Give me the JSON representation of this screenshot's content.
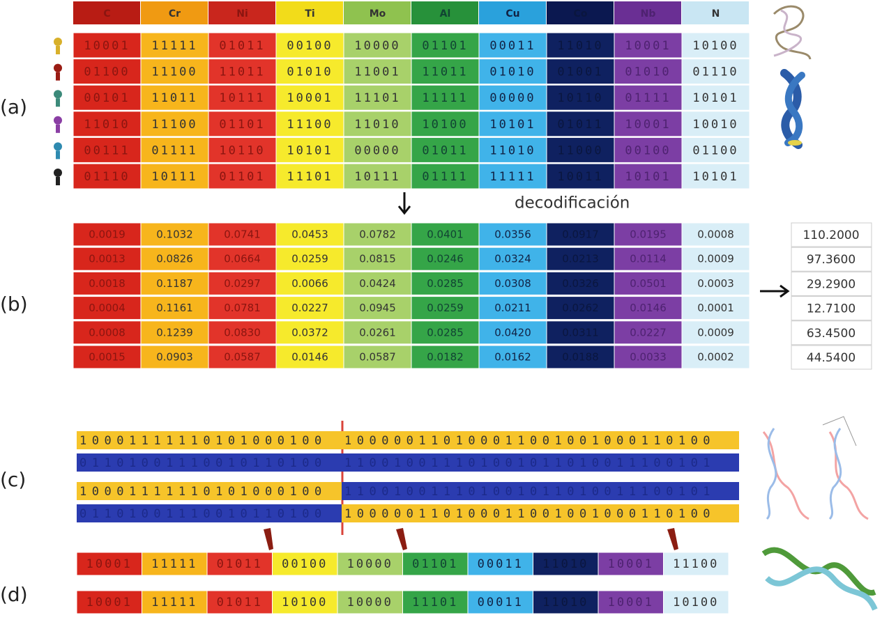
{
  "labels": {
    "a": "(a)",
    "b": "(b)",
    "c": "(c)",
    "d": "(d)"
  },
  "elements": [
    "C",
    "Cr",
    "Ni",
    "Ti",
    "Mo",
    "Al",
    "Cu",
    "Co",
    "Nb",
    "N"
  ],
  "population": [
    [
      "10001",
      "11111",
      "01011",
      "00100",
      "10000",
      "01101",
      "00011",
      "11010",
      "10001",
      "10100"
    ],
    [
      "01100",
      "11100",
      "11011",
      "01010",
      "11001",
      "11011",
      "01010",
      "01001",
      "01010",
      "01110"
    ],
    [
      "00101",
      "11011",
      "10111",
      "10001",
      "11101",
      "11111",
      "00000",
      "10110",
      "01111",
      "10101"
    ],
    [
      "11010",
      "11100",
      "01101",
      "11100",
      "11010",
      "10100",
      "10101",
      "01011",
      "10001",
      "10010"
    ],
    [
      "00111",
      "01111",
      "10110",
      "10101",
      "00000",
      "01011",
      "11010",
      "11000",
      "00100",
      "01100"
    ],
    [
      "01110",
      "10111",
      "01101",
      "11101",
      "10111",
      "01111",
      "11111",
      "10011",
      "10101",
      "10101"
    ]
  ],
  "decode_label": "decodificación",
  "fractions": [
    [
      "0.0019",
      "0.1032",
      "0.0741",
      "0.0453",
      "0.0782",
      "0.0401",
      "0.0356",
      "0.0917",
      "0.0195",
      "0.0008"
    ],
    [
      "0.0013",
      "0.0826",
      "0.0664",
      "0.0259",
      "0.0815",
      "0.0246",
      "0.0324",
      "0.0213",
      "0.0114",
      "0.0009"
    ],
    [
      "0.0018",
      "0.1187",
      "0.0297",
      "0.0066",
      "0.0424",
      "0.0285",
      "0.0308",
      "0.0326",
      "0.0501",
      "0.0003"
    ],
    [
      "0.0004",
      "0.1161",
      "0.0781",
      "0.0227",
      "0.0945",
      "0.0259",
      "0.0211",
      "0.0262",
      "0.0146",
      "0.0001"
    ],
    [
      "0.0008",
      "0.1239",
      "0.0830",
      "0.0372",
      "0.0261",
      "0.0285",
      "0.0420",
      "0.0311",
      "0.0227",
      "0.0009"
    ],
    [
      "0.0015",
      "0.0903",
      "0.0587",
      "0.0146",
      "0.0587",
      "0.0182",
      "0.0162",
      "0.0188",
      "0.0033",
      "0.0002"
    ]
  ],
  "fitness": [
    "110.2000",
    "97.3600",
    "29.2900",
    "12.7100",
    "63.4500",
    "44.5400"
  ],
  "crossover": [
    [
      "10001111110101000100",
      "100000110100011001001000110100"
    ],
    [
      "01101001110010110100",
      "110010011101001011010011100101"
    ],
    [
      "10001111110101000100",
      "110010011101001011010011100101"
    ],
    [
      "01101001110010110100",
      "100000110100011001001000110100"
    ]
  ],
  "mutation": [
    [
      "10001",
      "11111",
      "01011",
      "00100",
      "10000",
      "01101",
      "00011",
      "11010",
      "10001",
      "11100"
    ],
    [
      "10001",
      "11111",
      "01011",
      "10100",
      "10000",
      "11101",
      "00011",
      "11010",
      "10001",
      "10100"
    ]
  ]
}
